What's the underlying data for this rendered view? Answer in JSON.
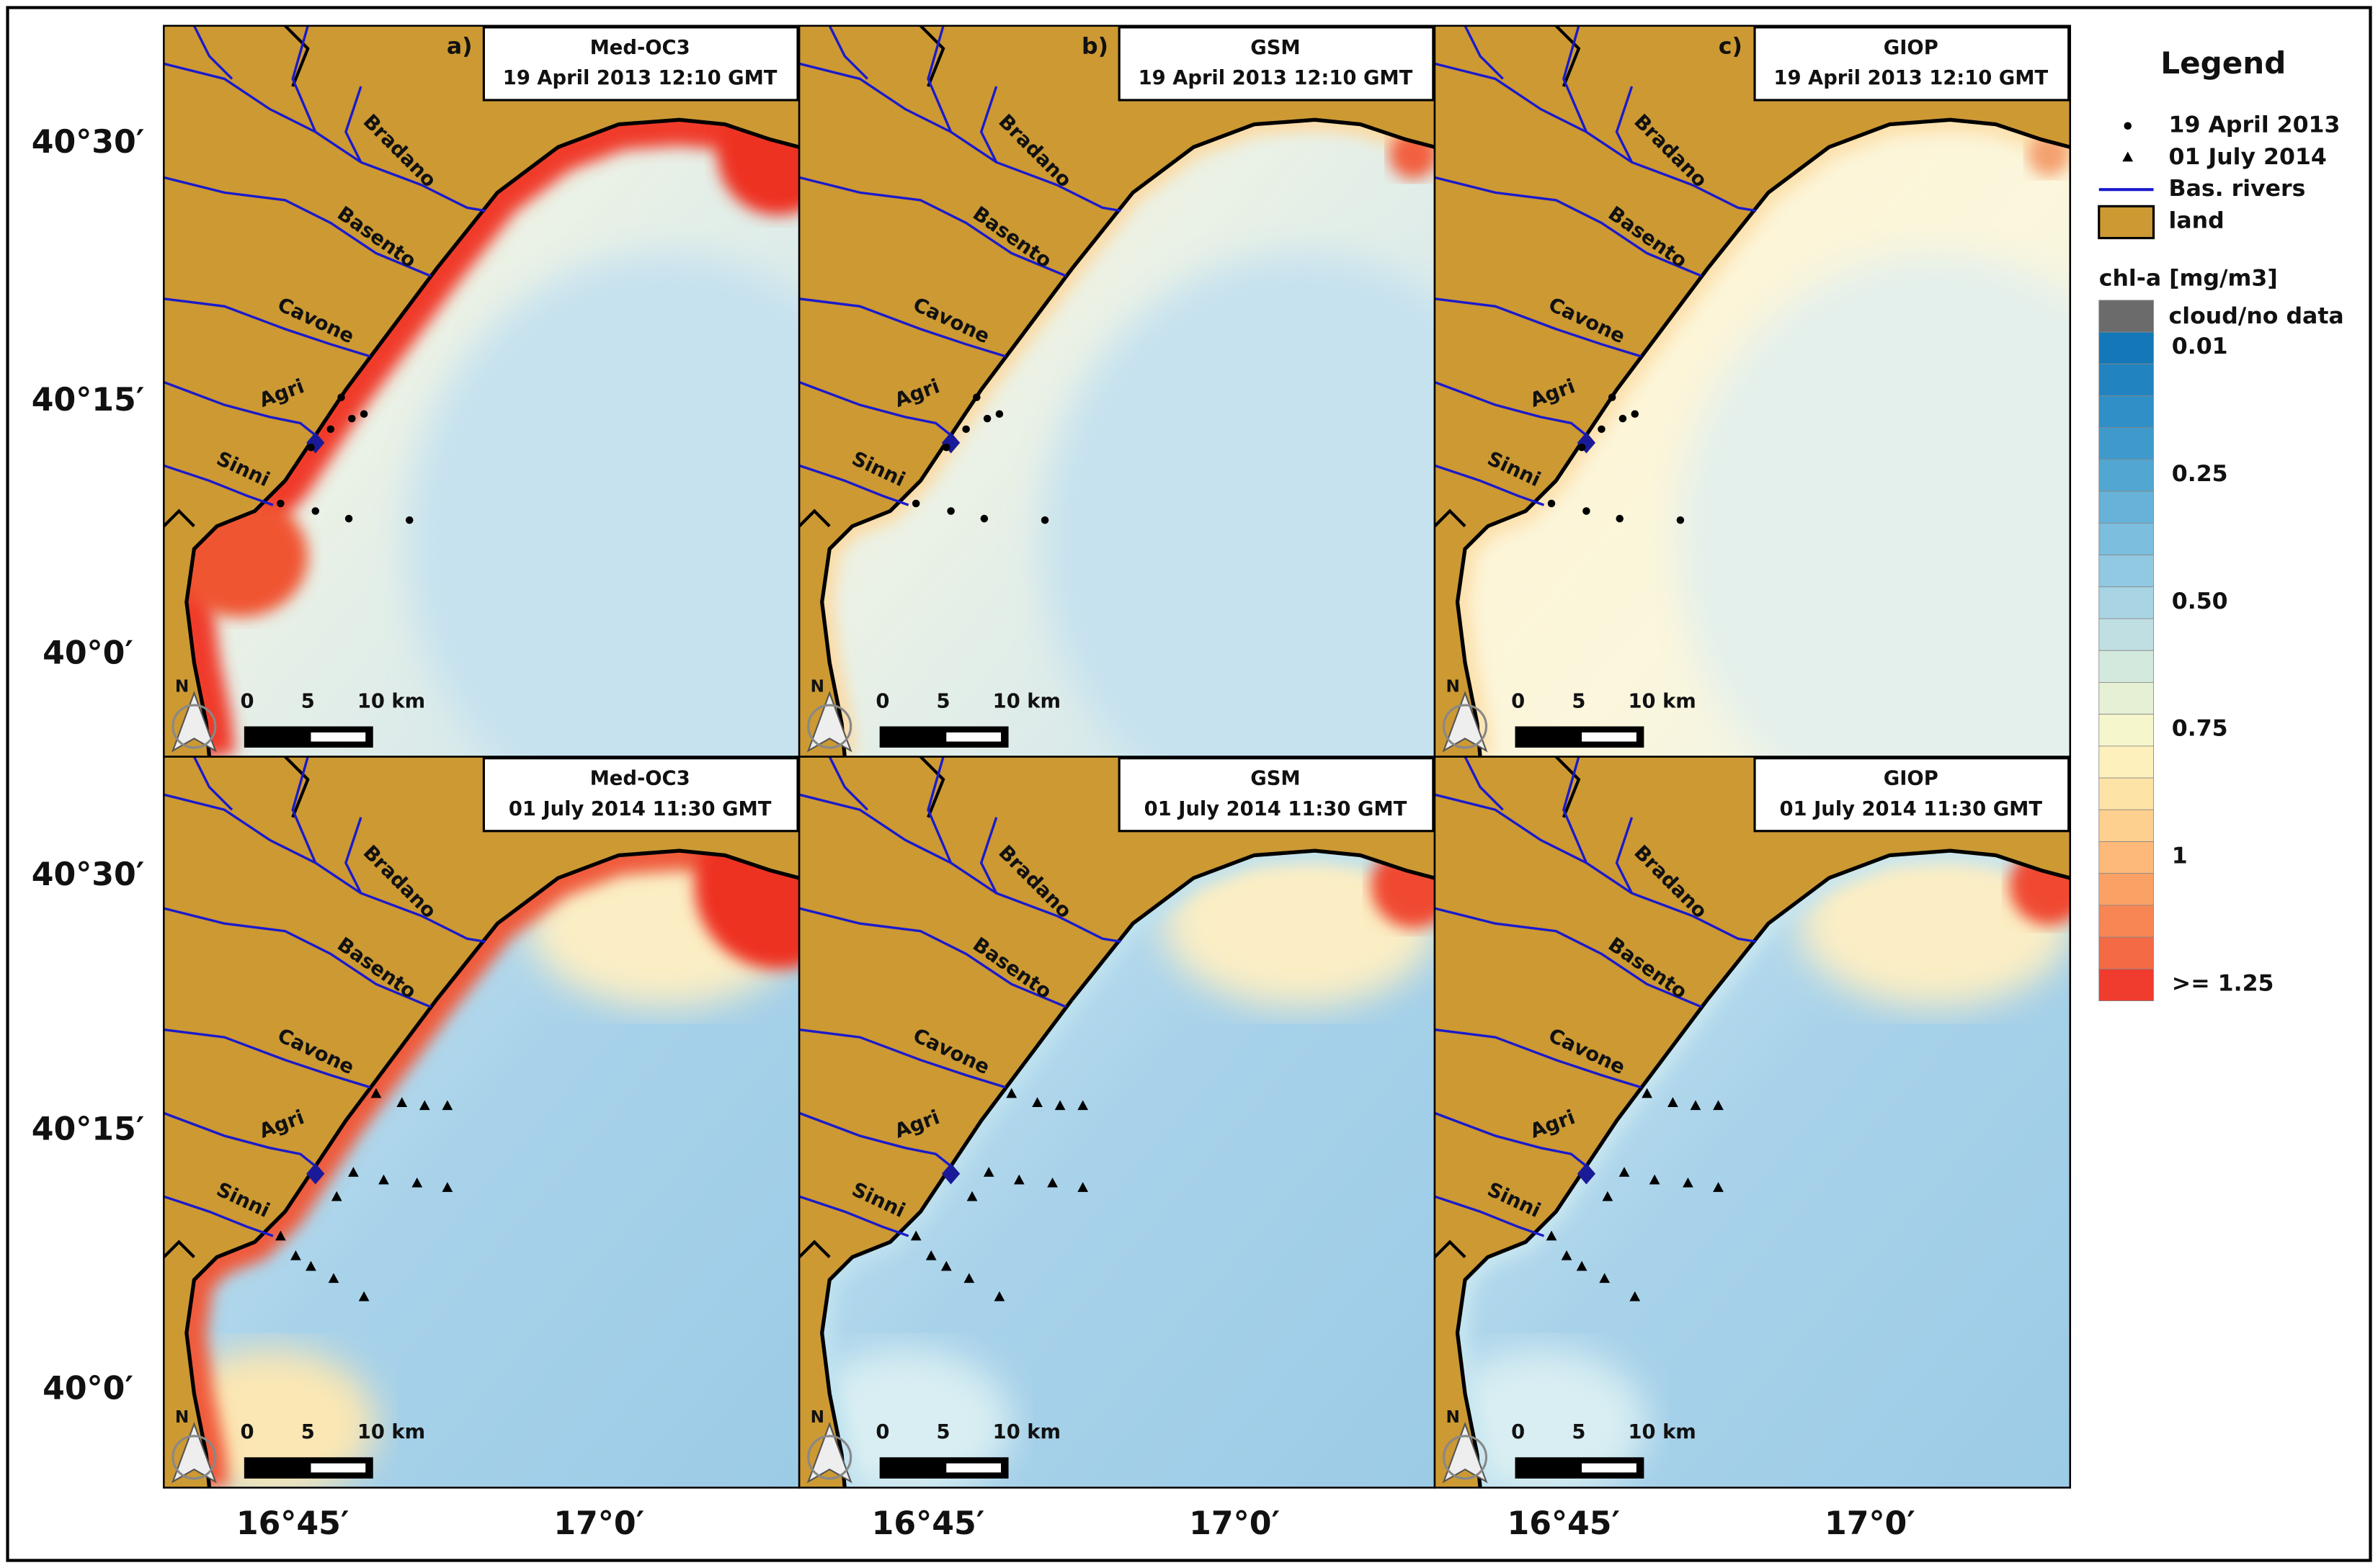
{
  "panels": [
    {
      "label": "a)",
      "model": "Med-OC3",
      "date": "19 April 2013 12:10 GMT"
    },
    {
      "label": "b)",
      "model": "GSM",
      "date": "19 April 2013 12:10 GMT"
    },
    {
      "label": "c)",
      "model": "GIOP",
      "date": "19 April 2013 12:10 GMT"
    },
    {
      "model": "Med-OC3",
      "date": "01 July 2014 11:30 GMT"
    },
    {
      "model": "GSM",
      "date": "01 July 2014 11:30 GMT"
    },
    {
      "model": "GIOP",
      "date": "01 July 2014 11:30 GMT"
    }
  ],
  "latitude_labels": [
    "40°30′",
    "40°15′",
    "40°0′"
  ],
  "longitude_labels": [
    "16°45′",
    "17°0′"
  ],
  "rivers": [
    "Bradano",
    "Basento",
    "Cavone",
    "Agri",
    "Sinni"
  ],
  "scale_bar": [
    "0",
    "5",
    "10 km"
  ],
  "north": "N",
  "legend": {
    "title": "Legend",
    "items": [
      "19 April 2013",
      "01 July 2014",
      "Bas. rivers",
      "land"
    ],
    "scale_title": "chl-a [mg/m3]",
    "no_data": "cloud/no data",
    "scale_labels": [
      "0.01",
      "0.25",
      "0.50",
      "0.75",
      "1",
      ">= 1.25"
    ]
  }
}
